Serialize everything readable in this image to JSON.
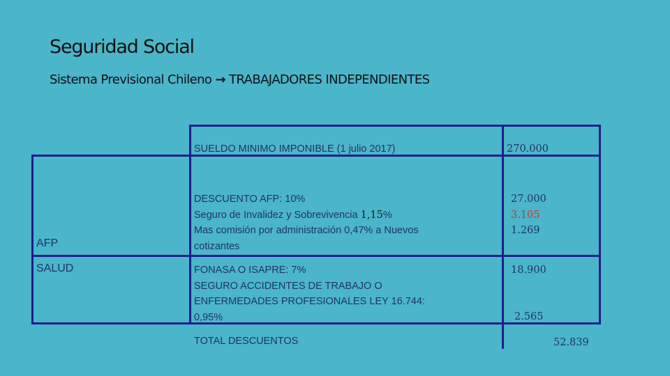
{
  "title": "Seguridad Social",
  "subtitle": {
    "text": "Sistema Previsional Chileno",
    "arrow": "→",
    "tail": "TRABAJADORES INDEPENDIENTES"
  },
  "row_labels": {
    "afp": "AFP",
    "salud": "SALUD"
  },
  "rows": {
    "sueldo": {
      "desc": "SUELDO MINIMO IMPONIBLE (1 julio 2017)",
      "value": "270.000"
    },
    "afp": {
      "line1": "DESCUENTO AFP: 10%",
      "line2_pre": "Seguro de Invalidez y Sobrevivencia ",
      "line2_num": "1,15",
      "line2_post": "%",
      "line3": "Mas comisión por administración 0,47% a Nuevos",
      "line4": "cotizantes",
      "values": [
        "27.000",
        "3.105",
        "1.269"
      ]
    },
    "salud": {
      "line1": "FONASA O ISAPRE: 7%",
      "line2": "SEGURO ACCIDENTES DE TRABAJO O",
      "line3": "ENFERMEDADES PROFESIONALES LEY 16.744:",
      "line4": "0,95%",
      "value1": "18.900",
      "value2": "2.565"
    },
    "total": {
      "label": "TOTAL DESCUENTOS",
      "value": "52.839"
    }
  },
  "colors": {
    "background": "#4bb5c9",
    "table_lines": "#1a1f8f",
    "text": "#1f3566",
    "highlight": "#c0392b"
  }
}
